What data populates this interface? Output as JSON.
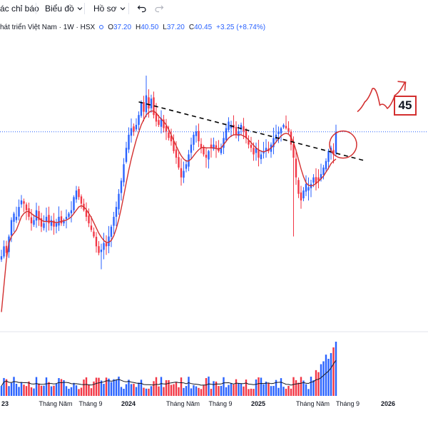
{
  "toolbar": {
    "indicators_label": "ác chỉ báo",
    "chart_label": "Biểu đồ",
    "profile_label": "Hồ sơ"
  },
  "legend": {
    "symbol": "hát triển Việt Nam · 1W · HSX",
    "open_key": "O",
    "open_val": "37.20",
    "high_key": "H",
    "high_val": "40.50",
    "low_key": "L",
    "low_val": "37.20",
    "close_key": "C",
    "close_val": "40.45",
    "change": "+3.25 (+8.74%)"
  },
  "annotation": {
    "target": "45"
  },
  "colors": {
    "up": "#2962ff",
    "down": "#f23645",
    "ma": "#d32f2f",
    "trendline": "#000000",
    "price_line": "#2962ff"
  },
  "chart_data": {
    "type": "candlestick",
    "interval": "1W",
    "price_range": [
      10,
      54
    ],
    "x_axis_labels": [
      {
        "text": "23",
        "bold": true,
        "slot": 0
      },
      {
        "text": "Tháng Năm",
        "bold": false,
        "slot": 19
      },
      {
        "text": "Tháng 9",
        "bold": false,
        "slot": 35
      },
      {
        "text": "2024",
        "bold": true,
        "slot": 52
      },
      {
        "text": "Tháng Năm",
        "bold": false,
        "slot": 70
      },
      {
        "text": "Tháng 9",
        "bold": false,
        "slot": 87
      },
      {
        "text": "2025",
        "bold": true,
        "slot": 104
      },
      {
        "text": "Tháng Năm",
        "bold": false,
        "slot": 122
      },
      {
        "text": "Tháng 9",
        "bold": false,
        "slot": 138
      },
      {
        "text": "2026",
        "bold": true,
        "slot": 156
      }
    ],
    "close_path": [
      21.5,
      23.0,
      22.0,
      24.5,
      27.0,
      28.0,
      27.5,
      29.0,
      30.0,
      29.5,
      28.5,
      27.5,
      26.5,
      27.0,
      28.5,
      27.0,
      26.0,
      26.5,
      27.5,
      26.5,
      27.0,
      26.0,
      26.5,
      27.5,
      26.5,
      27.0,
      27.5,
      28.0,
      28.5,
      30.5,
      31.5,
      30.5,
      29.5,
      28.5,
      27.5,
      26.5,
      25.5,
      24.5,
      23.0,
      22.0,
      22.5,
      23.5,
      23.0,
      24.5,
      26.0,
      27.5,
      29.0,
      31.0,
      33.0,
      35.5,
      38.0,
      40.0,
      41.0,
      40.5,
      41.5,
      43.0,
      45.0,
      43.5,
      46.0,
      44.0,
      45.5,
      43.0,
      42.0,
      41.5,
      42.5,
      41.0,
      40.5,
      39.5,
      39.0,
      37.5,
      36.5,
      35.0,
      33.5,
      34.5,
      35.5,
      37.0,
      38.5,
      40.0,
      40.5,
      39.0,
      38.0,
      37.0,
      36.5,
      37.5,
      38.0,
      38.5,
      38.0,
      37.5,
      38.0,
      39.5,
      41.0,
      42.0,
      41.5,
      41.0,
      40.0,
      40.5,
      41.5,
      40.5,
      39.5,
      38.5,
      38.0,
      37.0,
      38.0,
      36.5,
      37.0,
      37.5,
      38.0,
      37.5,
      38.5,
      39.5,
      40.0,
      40.5,
      41.0,
      41.5,
      41.0,
      40.5,
      38.5,
      36.5,
      33.5,
      31.0,
      30.0,
      31.5,
      32.5,
      32.0,
      32.5,
      33.5,
      32.5,
      33.0,
      34.0,
      35.0,
      36.0,
      37.5,
      38.0,
      37.0,
      40.45
    ],
    "ma_close_path": [
      13.0,
      17.0,
      21.0,
      23.5,
      24.5,
      25.0,
      25.5,
      26.5,
      27.5,
      28.0,
      28.3,
      28.3,
      28.0,
      27.7,
      27.5,
      27.3,
      27.0,
      26.8,
      26.8,
      26.8,
      26.8,
      26.7,
      26.6,
      26.7,
      26.8,
      26.9,
      27.0,
      27.2,
      27.5,
      28.0,
      28.5,
      29.0,
      29.2,
      29.0,
      28.6,
      28.0,
      27.4,
      26.6,
      25.8,
      25.0,
      24.4,
      23.9,
      23.6,
      23.6,
      23.9,
      24.6,
      25.7,
      27.1,
      28.8,
      30.7,
      32.7,
      34.6,
      36.3,
      37.8,
      39.2,
      40.4,
      41.5,
      42.3,
      43.0,
      43.4,
      43.6,
      43.6,
      43.3,
      42.8,
      42.4,
      42.0,
      41.5,
      40.8,
      40.0,
      39.1,
      38.3,
      37.5,
      36.8,
      36.3,
      36.0,
      36.0,
      36.3,
      36.8,
      37.3,
      37.7,
      38.0,
      38.1,
      38.0,
      38.0,
      38.0,
      38.0,
      37.9,
      37.8,
      38.0,
      38.5,
      39.0,
      39.5,
      39.8,
      40.0,
      40.0,
      40.0,
      40.0,
      39.8,
      39.6,
      39.2,
      38.8,
      38.4,
      38.0,
      37.7,
      37.5,
      37.4,
      37.5,
      37.7,
      38.0,
      38.4,
      38.9,
      39.4,
      39.8,
      40.1,
      40.2,
      40.1,
      39.6,
      38.8,
      37.6,
      36.2,
      34.8,
      33.6,
      32.7,
      32.3,
      32.2,
      32.3,
      32.6,
      32.9,
      33.3,
      33.7,
      34.3,
      34.9,
      35.6,
      36.0,
      36.3
    ],
    "trendline": {
      "from": {
        "slot": 55,
        "price": 45.0
      },
      "to": {
        "slot": 146,
        "price": 36.0
      }
    },
    "breakout_circle": {
      "slot": 134,
      "price": 38.5
    },
    "projected_path": [
      {
        "slot": 134,
        "price": 43.5
      },
      {
        "slot": 137,
        "price": 45.0
      },
      {
        "slot": 140,
        "price": 47.0
      },
      {
        "slot": 143,
        "price": 44.5
      },
      {
        "slot": 146,
        "price": 44.0
      },
      {
        "slot": 149,
        "price": 46.0
      },
      {
        "slot": 153,
        "price": 48.0
      }
    ],
    "volume_trend": "rising sharply into the last bars",
    "volume_ma_present": true
  }
}
